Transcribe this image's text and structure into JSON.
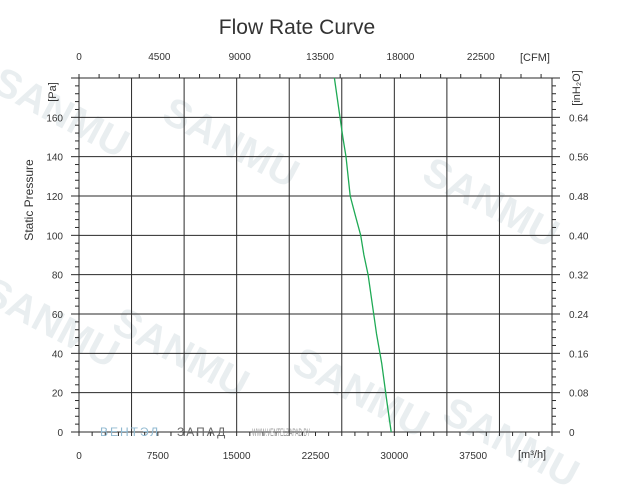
{
  "chart_data": {
    "type": "line",
    "title": "Flow Rate Curve",
    "xlabel": "[m³/h]",
    "ylabel": "Static Pressure",
    "x_top_label": "[CFM]",
    "y_left_unit": "[Pa]",
    "y_right_unit": "[inH₂O]",
    "xlim": [
      0,
      45000
    ],
    "ylim": [
      0,
      180
    ],
    "x_ticks": [
      0,
      7500,
      15000,
      22500,
      30000,
      37500
    ],
    "x_tick_labels": [
      "0",
      "7500",
      "15000",
      "22500",
      "30000",
      "37500"
    ],
    "x_top_ticks": [
      0,
      4500,
      9000,
      13500,
      18000,
      22500
    ],
    "x_top_tick_labels": [
      "0",
      "4500",
      "9000",
      "13500",
      "18000",
      "22500"
    ],
    "y_ticks": [
      0,
      20,
      40,
      60,
      80,
      100,
      120,
      140,
      160
    ],
    "y_tick_labels": [
      "0",
      "20",
      "40",
      "60",
      "80",
      "100",
      "120",
      "140",
      "160"
    ],
    "y_right_tick_labels": [
      "0",
      "0.08",
      "0.16",
      "0.24",
      "0.32",
      "0.40",
      "0.48",
      "0.56",
      "0.64"
    ],
    "grid": true,
    "series": [
      {
        "color": "#1faa55",
        "x": [
          24300,
          24700,
          25100,
          25400,
          25800,
          26300,
          26800,
          27100,
          27500,
          27900,
          28300,
          28800,
          29300,
          29700
        ],
        "y": [
          180,
          165,
          150,
          140,
          120,
          110,
          100,
          90,
          80,
          65,
          50,
          35,
          15,
          0
        ]
      }
    ]
  },
  "watermark": {
    "text": "SANMU",
    "color": "#e9eef0"
  },
  "brand": {
    "part1": "ВЕНТЭЛ",
    "part2": "ЗАПАД",
    "part3": "WWW.VENTELZAPAD.BY",
    "color1": "#8fb8d0",
    "color2": "#666666"
  }
}
